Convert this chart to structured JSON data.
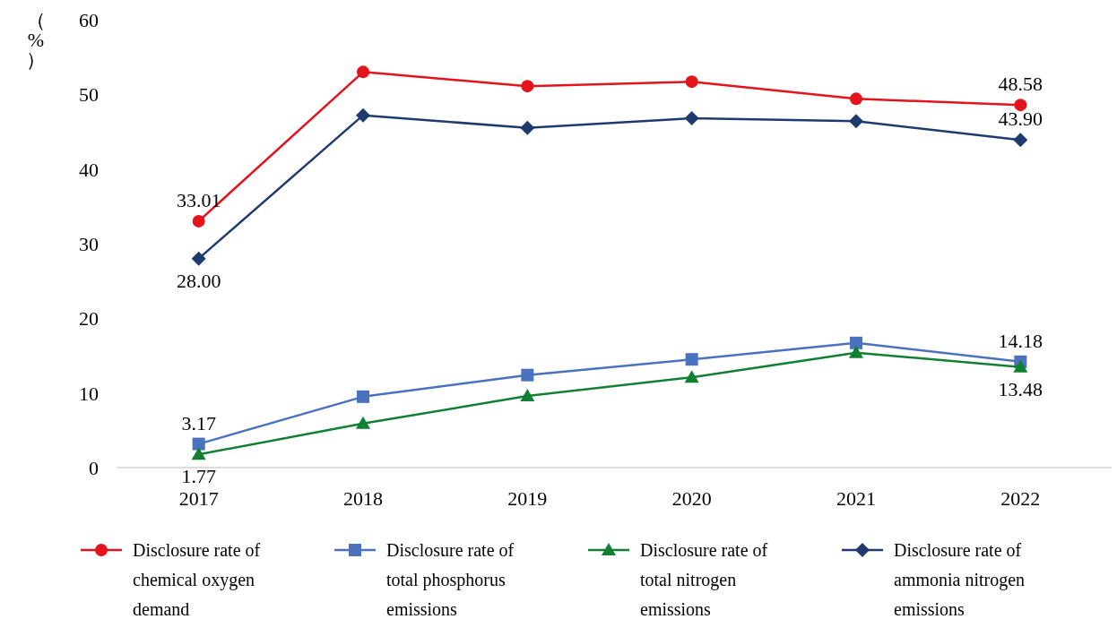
{
  "chart_data": {
    "type": "line",
    "ylabel": "（%）",
    "categories": [
      "2017",
      "2018",
      "2019",
      "2020",
      "2021",
      "2022"
    ],
    "ylim": [
      0,
      60
    ],
    "yticks": [
      0,
      10,
      20,
      30,
      40,
      50,
      60
    ],
    "grid": false,
    "legend": "bottom",
    "series": [
      {
        "name": "Disclosure rate of chemical oxygen demand",
        "color": "#e3141c",
        "marker": "circle",
        "values": [
          33.01,
          53.0,
          51.1,
          51.7,
          49.4,
          48.58
        ],
        "value_labels": [
          "33.01",
          null,
          null,
          null,
          null,
          "48.58"
        ]
      },
      {
        "name": "Disclosure rate of total phosphorus emissions",
        "color": "#4a72bf",
        "marker": "square",
        "values": [
          3.17,
          9.5,
          12.4,
          14.5,
          16.7,
          14.18
        ],
        "value_labels": [
          "3.17",
          null,
          null,
          null,
          null,
          "14.18"
        ]
      },
      {
        "name": "Disclosure rate of total nitrogen emissions",
        "color": "#118033",
        "marker": "triangle",
        "values": [
          1.77,
          5.9,
          9.6,
          12.1,
          15.4,
          13.48
        ],
        "value_labels": [
          "1.77",
          null,
          null,
          null,
          null,
          "13.48"
        ]
      },
      {
        "name": "Disclosure rate of ammonia nitrogen emissions",
        "color": "#1f3a6e",
        "marker": "diamond",
        "values": [
          28.0,
          47.2,
          45.5,
          46.8,
          46.4,
          43.9
        ],
        "value_labels": [
          "28.00",
          null,
          null,
          null,
          null,
          "43.90"
        ]
      }
    ]
  }
}
